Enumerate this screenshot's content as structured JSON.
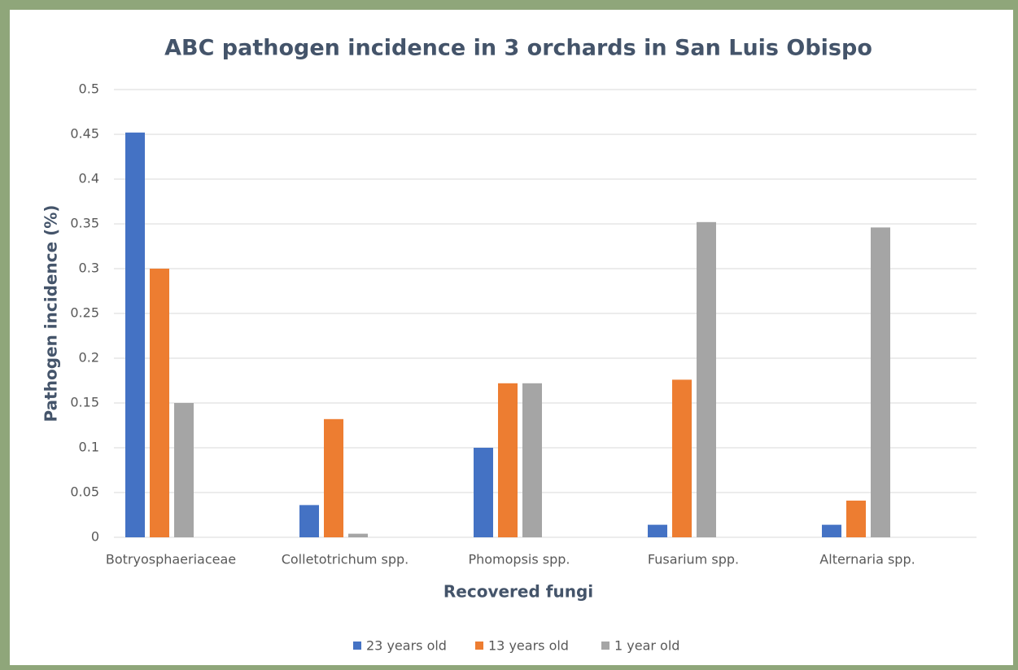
{
  "chart_data": {
    "type": "bar",
    "title": "ABC pathogen incidence in 3 orchards in San Luis Obispo",
    "x_label": "Recovered fungi",
    "y_label": "Pathogen incidence  (%)",
    "categories": [
      "Botryosphaeriaceae",
      "Colletotrichum spp.",
      "Phomopsis spp.",
      "Fusarium spp.",
      "Alternaria spp."
    ],
    "series": [
      {
        "name": "23 years old",
        "color": "#4472c4",
        "values": [
          0.452,
          0.036,
          0.1,
          0.014,
          0.014
        ]
      },
      {
        "name": "13 years old",
        "color": "#ed7d31",
        "values": [
          0.3,
          0.132,
          0.172,
          0.176,
          0.041
        ]
      },
      {
        "name": "1 year old",
        "color": "#a5a5a5",
        "values": [
          0.15,
          0.004,
          0.172,
          0.352,
          0.346
        ]
      }
    ],
    "ylim": [
      0,
      0.5
    ],
    "yticks": [
      0,
      0.05,
      0.1,
      0.15,
      0.2,
      0.25,
      0.3,
      0.35,
      0.4,
      0.45,
      0.5
    ],
    "grid": true,
    "legend": "bottom"
  }
}
